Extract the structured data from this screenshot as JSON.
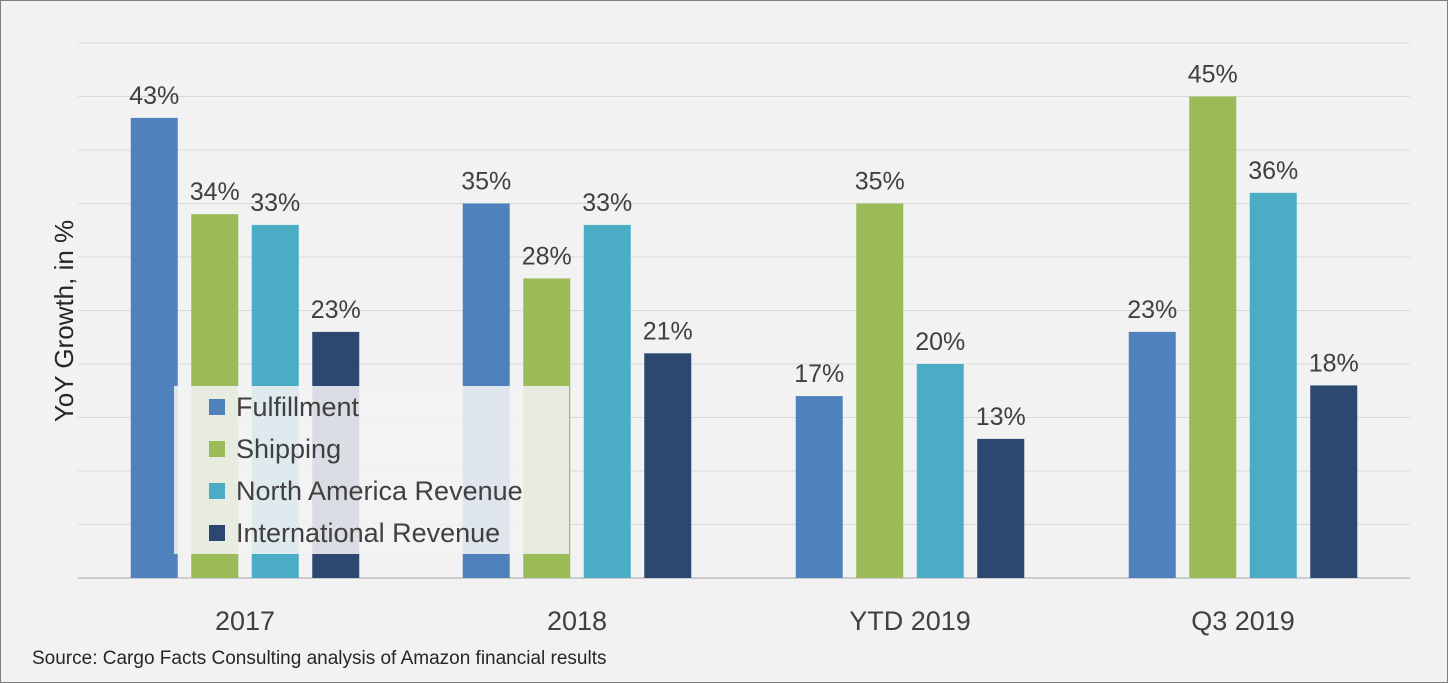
{
  "chart_data": {
    "type": "bar",
    "categories": [
      "2017",
      "2018",
      "YTD 2019",
      "Q3 2019"
    ],
    "series": [
      {
        "name": "Fulfillment",
        "values": [
          43,
          35,
          17,
          23
        ],
        "color": "#4f81bd"
      },
      {
        "name": "Shipping",
        "values": [
          34,
          28,
          35,
          45
        ],
        "color": "#9bbb59"
      },
      {
        "name": "North America Revenue",
        "values": [
          33,
          33,
          20,
          36
        ],
        "color": "#4bacc6"
      },
      {
        "name": "International Revenue",
        "values": [
          23,
          21,
          13,
          18
        ],
        "color": "#2c4770"
      }
    ],
    "data_labels": [
      [
        "43%",
        "35%",
        "17%",
        "23%"
      ],
      [
        "34%",
        "28%",
        "35%",
        "45%"
      ],
      [
        "33%",
        "33%",
        "20%",
        "36%"
      ],
      [
        "23%",
        "21%",
        "13%",
        "18%"
      ]
    ],
    "ylabel": "YoY Growth, in %",
    "ylim": [
      0,
      50
    ],
    "y_tick_step": 5,
    "y_tick_labels_shown": false,
    "grid": true,
    "legend_placement": "bottom-left inside plot"
  },
  "source": "Source: Cargo Facts Consulting analysis of Amazon financial results"
}
